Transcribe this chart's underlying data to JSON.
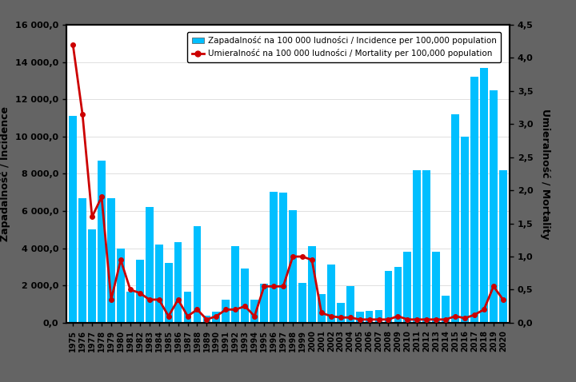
{
  "years": [
    1975,
    1976,
    1977,
    1978,
    1979,
    1980,
    1981,
    1982,
    1983,
    1984,
    1985,
    1986,
    1987,
    1988,
    1989,
    1990,
    1991,
    1992,
    1993,
    1994,
    1995,
    1996,
    1997,
    1998,
    1999,
    2000,
    2001,
    2002,
    2003,
    2004,
    2005,
    2006,
    2007,
    2008,
    2009,
    2010,
    2011,
    2012,
    2013,
    2014,
    2015,
    2016,
    2017,
    2018,
    2019,
    2020
  ],
  "incidence": [
    11100,
    6700,
    5000,
    8700,
    6700,
    4000,
    1650,
    3400,
    6200,
    4200,
    3200,
    4350,
    1650,
    5200,
    400,
    600,
    1250,
    4100,
    2900,
    1250,
    2100,
    7050,
    7000,
    6050,
    2150,
    4100,
    1550,
    3150,
    1050,
    1950,
    600,
    650,
    700,
    2800,
    3000,
    3800,
    8200,
    8200,
    3800,
    1450,
    11200,
    10000,
    13200,
    13700,
    12500,
    8200
  ],
  "mortality": [
    4.2,
    3.15,
    1.6,
    1.9,
    0.35,
    0.95,
    0.5,
    0.45,
    0.35,
    0.35,
    0.1,
    0.35,
    0.1,
    0.2,
    0.05,
    0.1,
    0.2,
    0.2,
    0.25,
    0.1,
    0.55,
    0.55,
    0.55,
    1.0,
    1.0,
    0.95,
    0.15,
    0.1,
    0.08,
    0.08,
    0.05,
    0.05,
    0.05,
    0.05,
    0.1,
    0.05,
    0.05,
    0.05,
    0.05,
    0.05,
    0.1,
    0.07,
    0.12,
    0.2,
    0.55,
    0.35
  ],
  "bar_color": "#00BFFF",
  "line_color": "#CC0000",
  "ylim_left": [
    0,
    16000
  ],
  "ylim_right": [
    0,
    4.5
  ],
  "yticks_left": [
    0,
    2000,
    4000,
    6000,
    8000,
    10000,
    12000,
    14000,
    16000
  ],
  "yticks_right": [
    0.0,
    0.5,
    1.0,
    1.5,
    2.0,
    2.5,
    3.0,
    3.5,
    4.0,
    4.5
  ],
  "ylabel_left": "Zapadalność / Incidence",
  "ylabel_right": "Umieralność / Mortality",
  "legend_incidence": "Zapadalność na 100 000 ludności / Incidence per 100,000 population",
  "legend_mortality": "Umieralność na 100 000 ludności / Mortality per 100,000 population",
  "bg_color": "#FFFFFF",
  "fig_bg_color": "#646464"
}
